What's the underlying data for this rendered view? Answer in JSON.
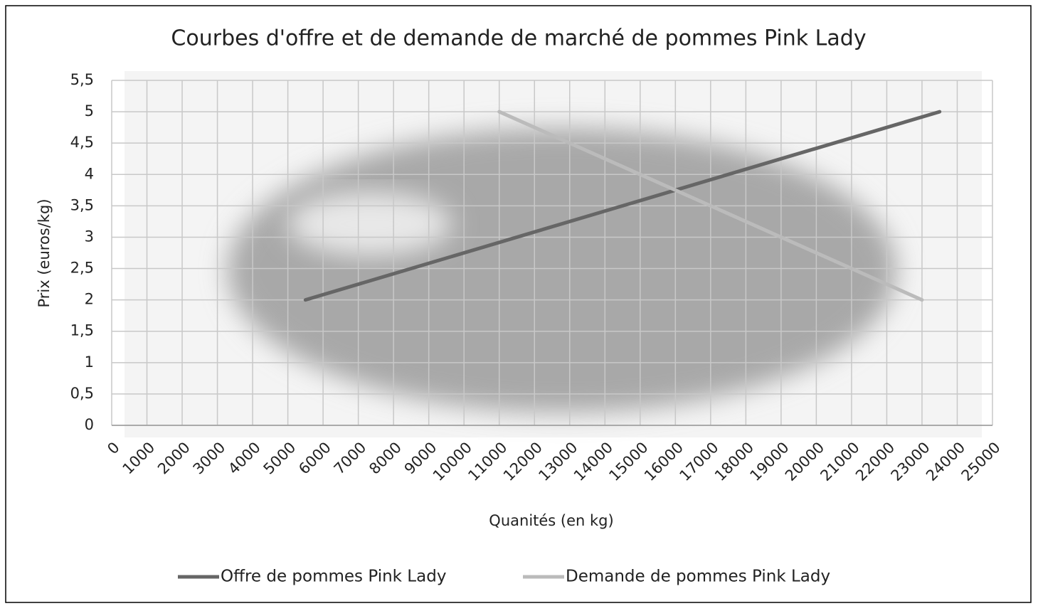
{
  "chart_data": {
    "type": "line",
    "title": "Courbes d'offre et de demande de marché de pommes Pink Lady",
    "x_label": "Quanités (en kg)",
    "y_label": "Prix (euros/kg)",
    "xlim": [
      0,
      25000
    ],
    "xticks": [
      0,
      1000,
      2000,
      3000,
      4000,
      5000,
      6000,
      7000,
      8000,
      9000,
      10000,
      11000,
      12000,
      13000,
      14000,
      15000,
      16000,
      17000,
      18000,
      19000,
      20000,
      21000,
      22000,
      23000,
      24000,
      25000
    ],
    "ylim": [
      0,
      5.5
    ],
    "yticks": [
      0,
      {
        "value": 0.5,
        "label": "0,5"
      },
      1,
      {
        "value": 1.5,
        "label": "1,5"
      },
      2,
      {
        "value": 2.5,
        "label": "2,5"
      },
      3,
      {
        "value": 3.5,
        "label": "3,5"
      },
      4,
      {
        "value": 4.5,
        "label": "4,5"
      },
      5,
      {
        "value": 5.5,
        "label": "5,5"
      }
    ],
    "grid": true,
    "legend": "bottom",
    "series": [
      {
        "name": "Offre de pommes Pink Lady",
        "color": "#666666",
        "x": [
          5500,
          23500
        ],
        "values": [
          2,
          5
        ]
      },
      {
        "name": "Demande de pommes Pink Lady",
        "color": "#bbbbbb",
        "x": [
          11000,
          23000
        ],
        "values": [
          5,
          2
        ]
      }
    ]
  }
}
